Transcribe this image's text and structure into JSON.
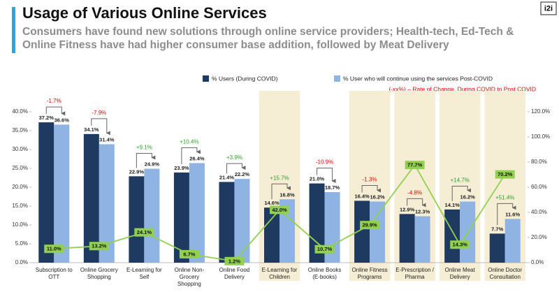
{
  "chart_data": {
    "type": "bar",
    "title": "Usage of Various Online Services",
    "subtitle": "Consumers have found new solutions through online service providers; Health-tech, Ed-Tech & Online Fitness have had higher consumer base addition, followed by Meat Delivery",
    "logo": "i2i",
    "note": "(-xx%) – Rate of Change, During COVID to Post COVID",
    "categories": [
      "Subscription to OTT",
      "Online Grocery Shopping",
      "E-Learning for Self",
      "Online Non-Grocery Shopping",
      "Online Food Delivery",
      "E-Learning for Children",
      "Online Books (E-books)",
      "Online Fitness Programs",
      "E-Prescription / Pharma",
      "Online Meat Delivery",
      "Online Doctor Consultation"
    ],
    "highlighted": [
      false,
      false,
      false,
      false,
      false,
      true,
      false,
      true,
      true,
      true,
      true
    ],
    "highlight_color": "#f6edd5",
    "series": [
      {
        "name": "% Users (During COVID)",
        "color": "#1f3a60",
        "values": [
          37.2,
          34.1,
          22.9,
          23.9,
          21.4,
          14.6,
          21.0,
          16.4,
          12.9,
          14.1,
          7.7
        ],
        "value_labels": [
          "37.2%",
          "34.1%",
          "22.9%",
          "23.9%",
          "21.4%",
          "14.6%",
          "21.0%",
          "16.4%",
          "12.9%",
          "14.1%",
          "7.7%"
        ]
      },
      {
        "name": "% User who will continue using the services Post-COVID",
        "color": "#8fb4e3",
        "values": [
          36.6,
          31.4,
          24.9,
          26.4,
          22.2,
          16.8,
          18.7,
          16.2,
          12.3,
          16.2,
          11.6
        ],
        "value_labels": [
          "36.6%",
          "31.4%",
          "24.9%",
          "26.4%",
          "22.2%",
          "16.8%",
          "18.7%",
          "16.2%",
          "12.3%",
          "16.2%",
          "11.6%"
        ]
      },
      {
        "type": "line",
        "axis": "y2",
        "color": "#92d050",
        "values": [
          11.0,
          13.2,
          24.1,
          6.7,
          1.2,
          42.0,
          10.7,
          29.9,
          77.7,
          14.3,
          70.2
        ],
        "value_labels": [
          "11.0%",
          "13.2%",
          "24.1%",
          "6.7%",
          "1.2%",
          "42.0%",
          "10.7%",
          "29.9%",
          "77.7%",
          "14.3%",
          "70.2%"
        ]
      }
    ],
    "changes": {
      "values": [
        -1.7,
        -7.9,
        9.1,
        10.4,
        3.9,
        15.7,
        -10.9,
        -1.3,
        -4.8,
        14.7,
        51.4
      ],
      "value_labels": [
        "-1.7%",
        "-7.9%",
        "+9.1%",
        "+10.4%",
        "+3.9%",
        "+15.7%",
        "-10.9%",
        "-1.3%",
        "-4.8%",
        "+14.7%",
        "+51.4%"
      ],
      "positive_color": "#2ca02c",
      "negative_color": "#e00000"
    },
    "ylim": [
      0,
      40
    ],
    "yticks": [
      {
        "value": 0,
        "label": "0.0%"
      },
      {
        "value": 5,
        "label": "5.0%"
      },
      {
        "value": 10,
        "label": "10.0%"
      },
      {
        "value": 15,
        "label": "15.0%"
      },
      {
        "value": 20,
        "label": "20.0%"
      },
      {
        "value": 25,
        "label": "25.0%"
      },
      {
        "value": 30,
        "label": "30.0%"
      },
      {
        "value": 35,
        "label": "35.0%"
      },
      {
        "value": 40,
        "label": "40.0%"
      }
    ],
    "y2lim": [
      0,
      120
    ],
    "y2ticks": [
      {
        "value": 0,
        "label": "0.0%"
      },
      {
        "value": 20,
        "label": "20.0%"
      },
      {
        "value": 40,
        "label": "40.0%"
      },
      {
        "value": 60,
        "label": "60.0%"
      },
      {
        "value": 80,
        "label": "80.0%"
      },
      {
        "value": 100,
        "label": "100.0%"
      },
      {
        "value": 120,
        "label": "120.0%"
      }
    ]
  }
}
